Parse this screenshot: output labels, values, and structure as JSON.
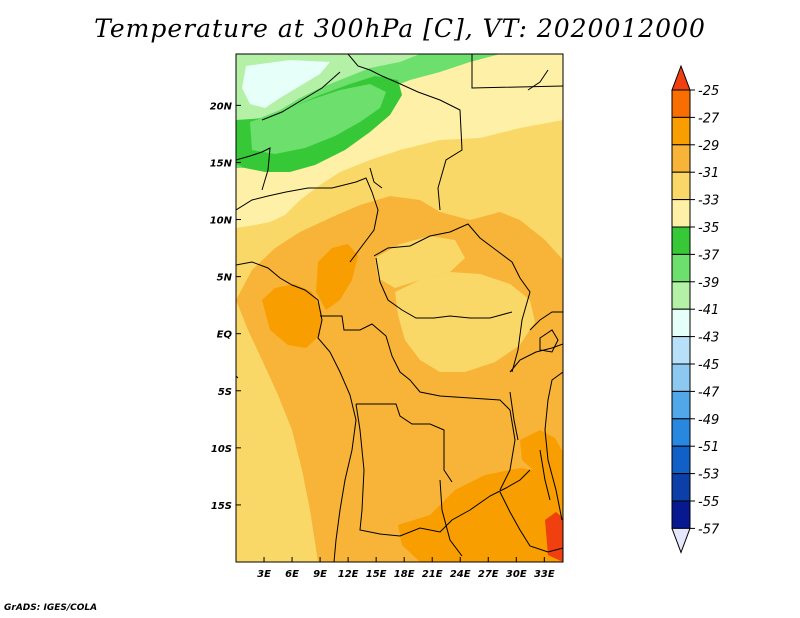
{
  "title": "Temperature at 300hPa [C], VT: 2020012000",
  "credit": "GrADS: IGES/COLA",
  "variable": "Temperature at 300hPa",
  "units": "C",
  "valid_time": "2020012000",
  "map": {
    "lon_range": [
      0,
      35
    ],
    "lat_range": [
      -20,
      24.5
    ],
    "lon_ticks": [
      "3E",
      "6E",
      "9E",
      "12E",
      "15E",
      "18E",
      "21E",
      "24E",
      "27E",
      "30E",
      "33E"
    ],
    "lat_ticks": [
      "20N",
      "15N",
      "10N",
      "5N",
      "EQ",
      "5S",
      "10S",
      "15S"
    ]
  },
  "colorbar": {
    "levels": [
      "-25",
      "-27",
      "-29",
      "-31",
      "-33",
      "-35",
      "-37",
      "-39",
      "-41",
      "-43",
      "-45",
      "-47",
      "-49",
      "-51",
      "-53",
      "-55",
      "-57"
    ],
    "colors": [
      "#f04010",
      "#f86e00",
      "#f89e00",
      "#f8b438",
      "#fad868",
      "#fef0a6",
      "#37c837",
      "#6cdf6c",
      "#b4f0a6",
      "#e6fff8",
      "#b8e0f8",
      "#8cc8f0",
      "#50a8e8",
      "#2888e0",
      "#1060c8",
      "#0c40a8",
      "#081890"
    ],
    "over_color": "#f04010",
    "under_color": "#e6e6fe"
  }
}
